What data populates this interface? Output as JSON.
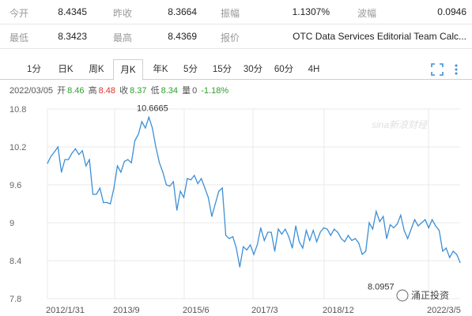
{
  "quote": {
    "row1": [
      {
        "label": "今开",
        "value": "8.4345"
      },
      {
        "label": "昨收",
        "value": "8.3664"
      },
      {
        "label": "振幅",
        "value": "1.1307%"
      },
      {
        "label": "波幅",
        "value": "0.0946"
      }
    ],
    "row2": [
      {
        "label": "最低",
        "value": "8.3423"
      },
      {
        "label": "最高",
        "value": "8.4369"
      },
      {
        "label": "报价",
        "value": "OTC Data Services Editorial Team Calc..."
      }
    ]
  },
  "tabs": [
    "1分",
    "日K",
    "周K",
    "月K",
    "年K",
    "5分",
    "15分",
    "30分",
    "60分",
    "4H"
  ],
  "active_tab": "月K",
  "tools": {
    "fullscreen_icon": "fullscreen-icon",
    "more_icon": "more-vertical-icon"
  },
  "info_bar": {
    "date": "2022/03/05",
    "open_label": "开",
    "open": "8.46",
    "high_label": "高",
    "high": "8.48",
    "close_label": "收",
    "close": "8.37",
    "low_label": "低",
    "low": "8.34",
    "volume_label": "量",
    "volume": "0",
    "change": "-1.18%"
  },
  "colors": {
    "line": "#3d8fd6",
    "up": "#e0322a",
    "down": "#2ca02c",
    "grid": "#e8e8e8"
  },
  "watermark": {
    "brand": "sina新浪财经",
    "source": "涌正投资"
  },
  "chart_data": {
    "type": "line",
    "ylim": [
      7.8,
      10.8
    ],
    "yticks": [
      10.8,
      10.2,
      9.6,
      9,
      8.4,
      7.8
    ],
    "xtick_labels": [
      "2012/1/31",
      "2013/9",
      "2015/6",
      "2017/3",
      "2018/12",
      "2022/3/5"
    ],
    "annotations": [
      {
        "label": "10.6665",
        "value": 10.6665
      },
      {
        "label": "8.0957",
        "value": 8.0957
      }
    ],
    "series": [
      {
        "values": [
          9.94,
          10.05,
          10.12,
          10.2,
          9.8,
          10.0,
          10.0,
          10.1,
          10.17,
          10.08,
          10.14,
          9.9,
          10.0,
          9.45,
          9.45,
          9.55,
          9.32,
          9.32,
          9.3,
          9.55,
          9.9,
          9.8,
          9.97,
          10.0,
          9.95,
          10.3,
          10.4,
          10.6,
          10.5,
          10.67,
          10.5,
          10.2,
          9.95,
          9.8,
          9.6,
          9.58,
          9.65,
          9.2,
          9.5,
          9.4,
          9.7,
          9.68,
          9.75,
          9.62,
          9.7,
          9.55,
          9.4,
          9.1,
          9.3,
          9.5,
          9.55,
          8.8,
          8.75,
          8.78,
          8.6,
          8.3,
          8.62,
          8.57,
          8.65,
          8.5,
          8.65,
          8.92,
          8.72,
          8.85,
          8.85,
          8.55,
          8.9,
          8.82,
          8.9,
          8.78,
          8.6,
          8.95,
          8.7,
          8.6,
          8.88,
          8.72,
          8.88,
          8.7,
          8.85,
          8.92,
          8.9,
          8.8,
          8.9,
          8.85,
          8.75,
          8.7,
          8.8,
          8.72,
          8.75,
          8.68,
          8.5,
          8.55,
          9.0,
          8.9,
          9.18,
          9.02,
          9.1,
          8.75,
          8.97,
          8.92,
          8.98,
          9.12,
          8.88,
          8.75,
          8.9,
          9.05,
          8.95,
          9.0,
          9.05,
          8.92,
          9.05,
          8.95,
          8.88,
          8.55,
          8.6,
          8.45,
          8.55,
          8.5,
          8.37
        ]
      }
    ]
  }
}
